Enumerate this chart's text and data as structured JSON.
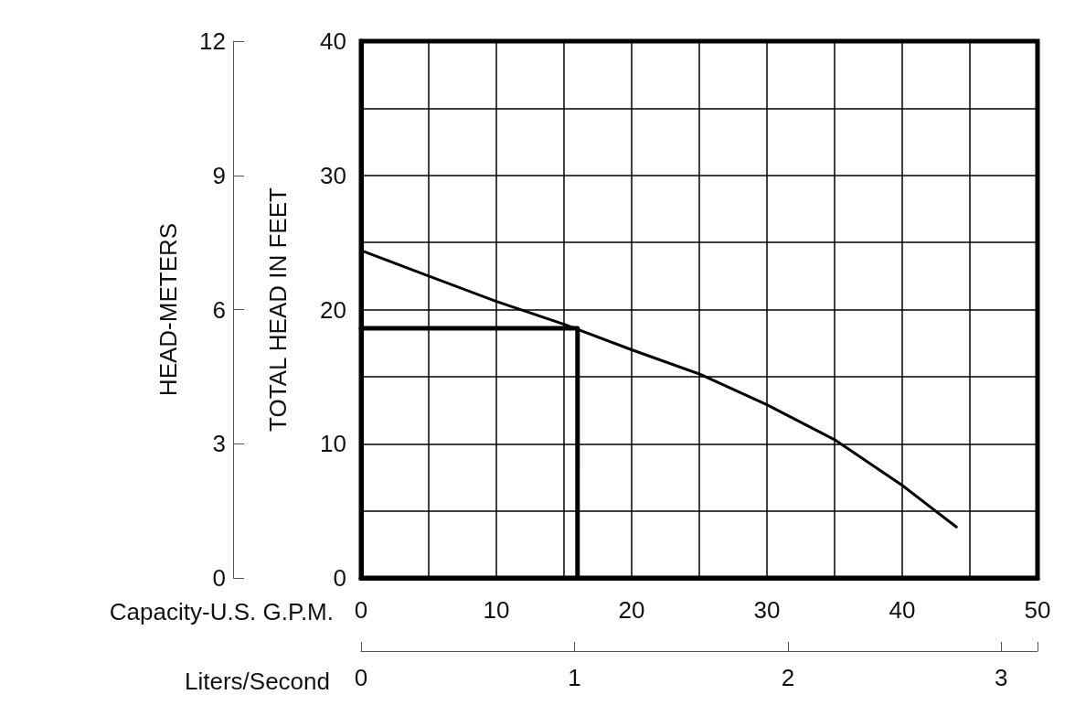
{
  "chart_data": {
    "type": "line",
    "xlabel": "Capacity-U.S. G.P.M.",
    "ylabel": "TOTAL HEAD IN FEET",
    "y2label": "HEAD-METERS",
    "x2label": "Liters/Second",
    "xlim": [
      0,
      50
    ],
    "xticks": [
      0,
      {
        "value": 5,
        "label": null
      },
      10,
      {
        "value": 15,
        "label": null
      },
      20,
      {
        "value": 25,
        "label": null
      },
      30,
      {
        "value": 35,
        "label": null
      },
      40,
      {
        "value": 45,
        "label": null
      },
      50
    ],
    "ylim": [
      0,
      40
    ],
    "yticks": [
      0,
      {
        "value": 5,
        "label": null
      },
      10,
      {
        "value": 15,
        "label": null
      },
      20,
      {
        "value": 25,
        "label": null
      },
      30,
      {
        "value": 35,
        "label": null
      },
      40
    ],
    "y2lim": [
      0,
      12
    ],
    "y2ticks": [
      0,
      3,
      6,
      9,
      12
    ],
    "x2lim": [
      0,
      3.17
    ],
    "x2ticks": [
      0,
      1,
      2,
      3
    ],
    "grid": true,
    "marker": "none",
    "line_style": "solid",
    "series": [
      {
        "color": "#000000",
        "x": [
          0,
          5,
          10,
          15,
          20,
          25,
          30,
          35,
          40,
          44
        ],
        "values": [
          24.4,
          22.5,
          20.6,
          18.9,
          17.0,
          15.2,
          12.9,
          10.3,
          6.9,
          3.8
        ]
      },
      {
        "color": "#000000",
        "x": [
          0,
          16,
          16
        ],
        "values": [
          18.6,
          18.6,
          0
        ]
      }
    ]
  }
}
